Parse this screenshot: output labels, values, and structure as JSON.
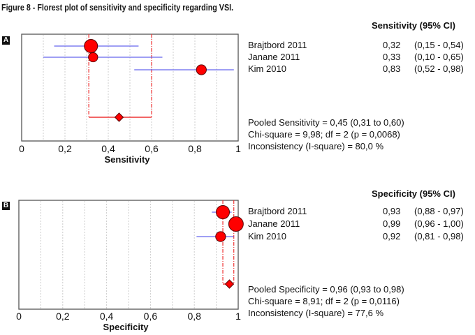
{
  "figure_title": "Figure 8 - Florest plot of sensitivity and specificity regarding VSI.",
  "colors": {
    "marker_fill": "#ff0000",
    "marker_stroke": "#5a0000",
    "ci_line": "#6666ee",
    "pooled_line": "#ee3333",
    "grid": "#cccccc",
    "axis": "#555555"
  },
  "chart_data": [
    {
      "type": "forest",
      "panel_label": "A",
      "title": "",
      "xlabel": "Sensitivity",
      "xlim": [
        0,
        1
      ],
      "xticks": [
        0,
        0.2,
        0.4,
        0.6,
        0.8,
        1
      ],
      "xtick_labels": [
        "0",
        "0,2",
        "0,4",
        "0,6",
        "0,8",
        "1"
      ],
      "grid": true,
      "column_header": "Sensitivity (95% CI)",
      "studies": [
        {
          "name": "Brajtbord 2011",
          "value": 0.32,
          "ci_low": 0.15,
          "ci_high": 0.54,
          "value_text": "0,32",
          "ci_text": "(0,15 - 0,54)",
          "weight": 1.0
        },
        {
          "name": "Janane 2011",
          "value": 0.33,
          "ci_low": 0.1,
          "ci_high": 0.65,
          "value_text": "0,33",
          "ci_text": "(0,10 - 0,65)",
          "weight": 0.7
        },
        {
          "name": "Kim 2010",
          "value": 0.83,
          "ci_low": 0.52,
          "ci_high": 0.98,
          "value_text": "0,83",
          "ci_text": "(0,52 - 0,98)",
          "weight": 0.75
        }
      ],
      "pooled": {
        "value": 0.45,
        "ci_low": 0.31,
        "ci_high": 0.6
      },
      "stats": [
        "Pooled Sensitivity = 0,45 (0,31 to 0,60)",
        "Chi-square = 9,98; df =  2 (p = 0,0068)",
        "Inconsistency (I-square) = 80,0 %"
      ]
    },
    {
      "type": "forest",
      "panel_label": "B",
      "title": "",
      "xlabel": "Specificity",
      "xlim": [
        0,
        1
      ],
      "xticks": [
        0,
        0.2,
        0.4,
        0.6,
        0.8,
        1
      ],
      "xtick_labels": [
        "0",
        "0,2",
        "0,4",
        "0,6",
        "0,8",
        "1"
      ],
      "grid": true,
      "column_header": "Specificity (95% CI)",
      "studies": [
        {
          "name": "Brajtbord 2011",
          "value": 0.93,
          "ci_low": 0.88,
          "ci_high": 0.97,
          "value_text": "0,93",
          "ci_text": "(0,88 - 0,97)",
          "weight": 1.0
        },
        {
          "name": "Janane 2011",
          "value": 0.99,
          "ci_low": 0.96,
          "ci_high": 1.0,
          "value_text": "0,99",
          "ci_text": "(0,96 - 1,00)",
          "weight": 1.1
        },
        {
          "name": "Kim 2010",
          "value": 0.92,
          "ci_low": 0.81,
          "ci_high": 0.98,
          "value_text": "0,92",
          "ci_text": "(0,81 - 0,98)",
          "weight": 0.75
        }
      ],
      "pooled": {
        "value": 0.96,
        "ci_low": 0.93,
        "ci_high": 0.98
      },
      "stats": [
        "Pooled Specificity = 0,96 (0,93 to 0,98)",
        "Chi-square = 8,91; df =  2 (p = 0,0116)",
        "Inconsistency (I-square) = 77,6 %"
      ]
    }
  ]
}
